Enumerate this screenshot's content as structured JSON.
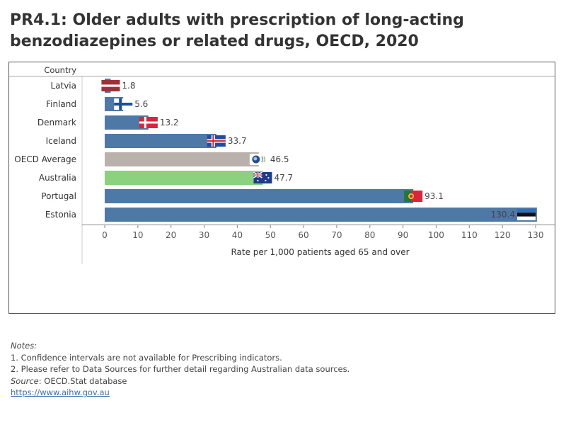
{
  "page": {
    "title_line1": "PR4.1: Older adults with prescription of long-acting",
    "title_line2": "benzodiazepines or related drugs, OECD, 2020"
  },
  "notes": {
    "heading": "Notes:",
    "note1": "1. Confidence intervals are not available for Prescribing indicators.",
    "note2": "2. Please refer to Data Sources for further detail regarding Australian data sources.",
    "source_label": "Source",
    "source_text": ": OECD.Stat database",
    "link": "https://www.aihw.gov.au"
  },
  "colors": {
    "default_bar": "#4e79a7",
    "oecd_bar": "#bab0ac",
    "australia_bar": "#8cd17d",
    "axis": "#555555",
    "grid": "#e6e6e6"
  },
  "chart_data": {
    "type": "bar",
    "orientation": "horizontal",
    "row_header": "Country",
    "xlabel": "Rate per 1,000 patients aged 65 and over",
    "xlim": [
      0,
      130
    ],
    "xticks": [
      0,
      10,
      20,
      30,
      40,
      50,
      60,
      70,
      80,
      90,
      100,
      110,
      120,
      130
    ],
    "categories": [
      "Latvia",
      "Finland",
      "Denmark",
      "Iceland",
      "OECD Average",
      "Australia",
      "Portugal",
      "Estonia"
    ],
    "values": [
      1.8,
      5.6,
      13.2,
      33.7,
      46.5,
      47.7,
      93.1,
      130.4
    ],
    "labels": [
      "1.8",
      "5.6",
      "13.2",
      "33.7",
      "46.5",
      "47.7",
      "93.1",
      "130.4"
    ],
    "flags": [
      "latvia-flag",
      "finland-flag",
      "denmark-flag",
      "iceland-flag",
      "oecd-logo",
      "australia-flag",
      "portugal-flag",
      "estonia-flag"
    ],
    "bar_colors": [
      "#4e79a7",
      "#4e79a7",
      "#4e79a7",
      "#4e79a7",
      "#bab0ac",
      "#8cd17d",
      "#4e79a7",
      "#4e79a7"
    ]
  }
}
